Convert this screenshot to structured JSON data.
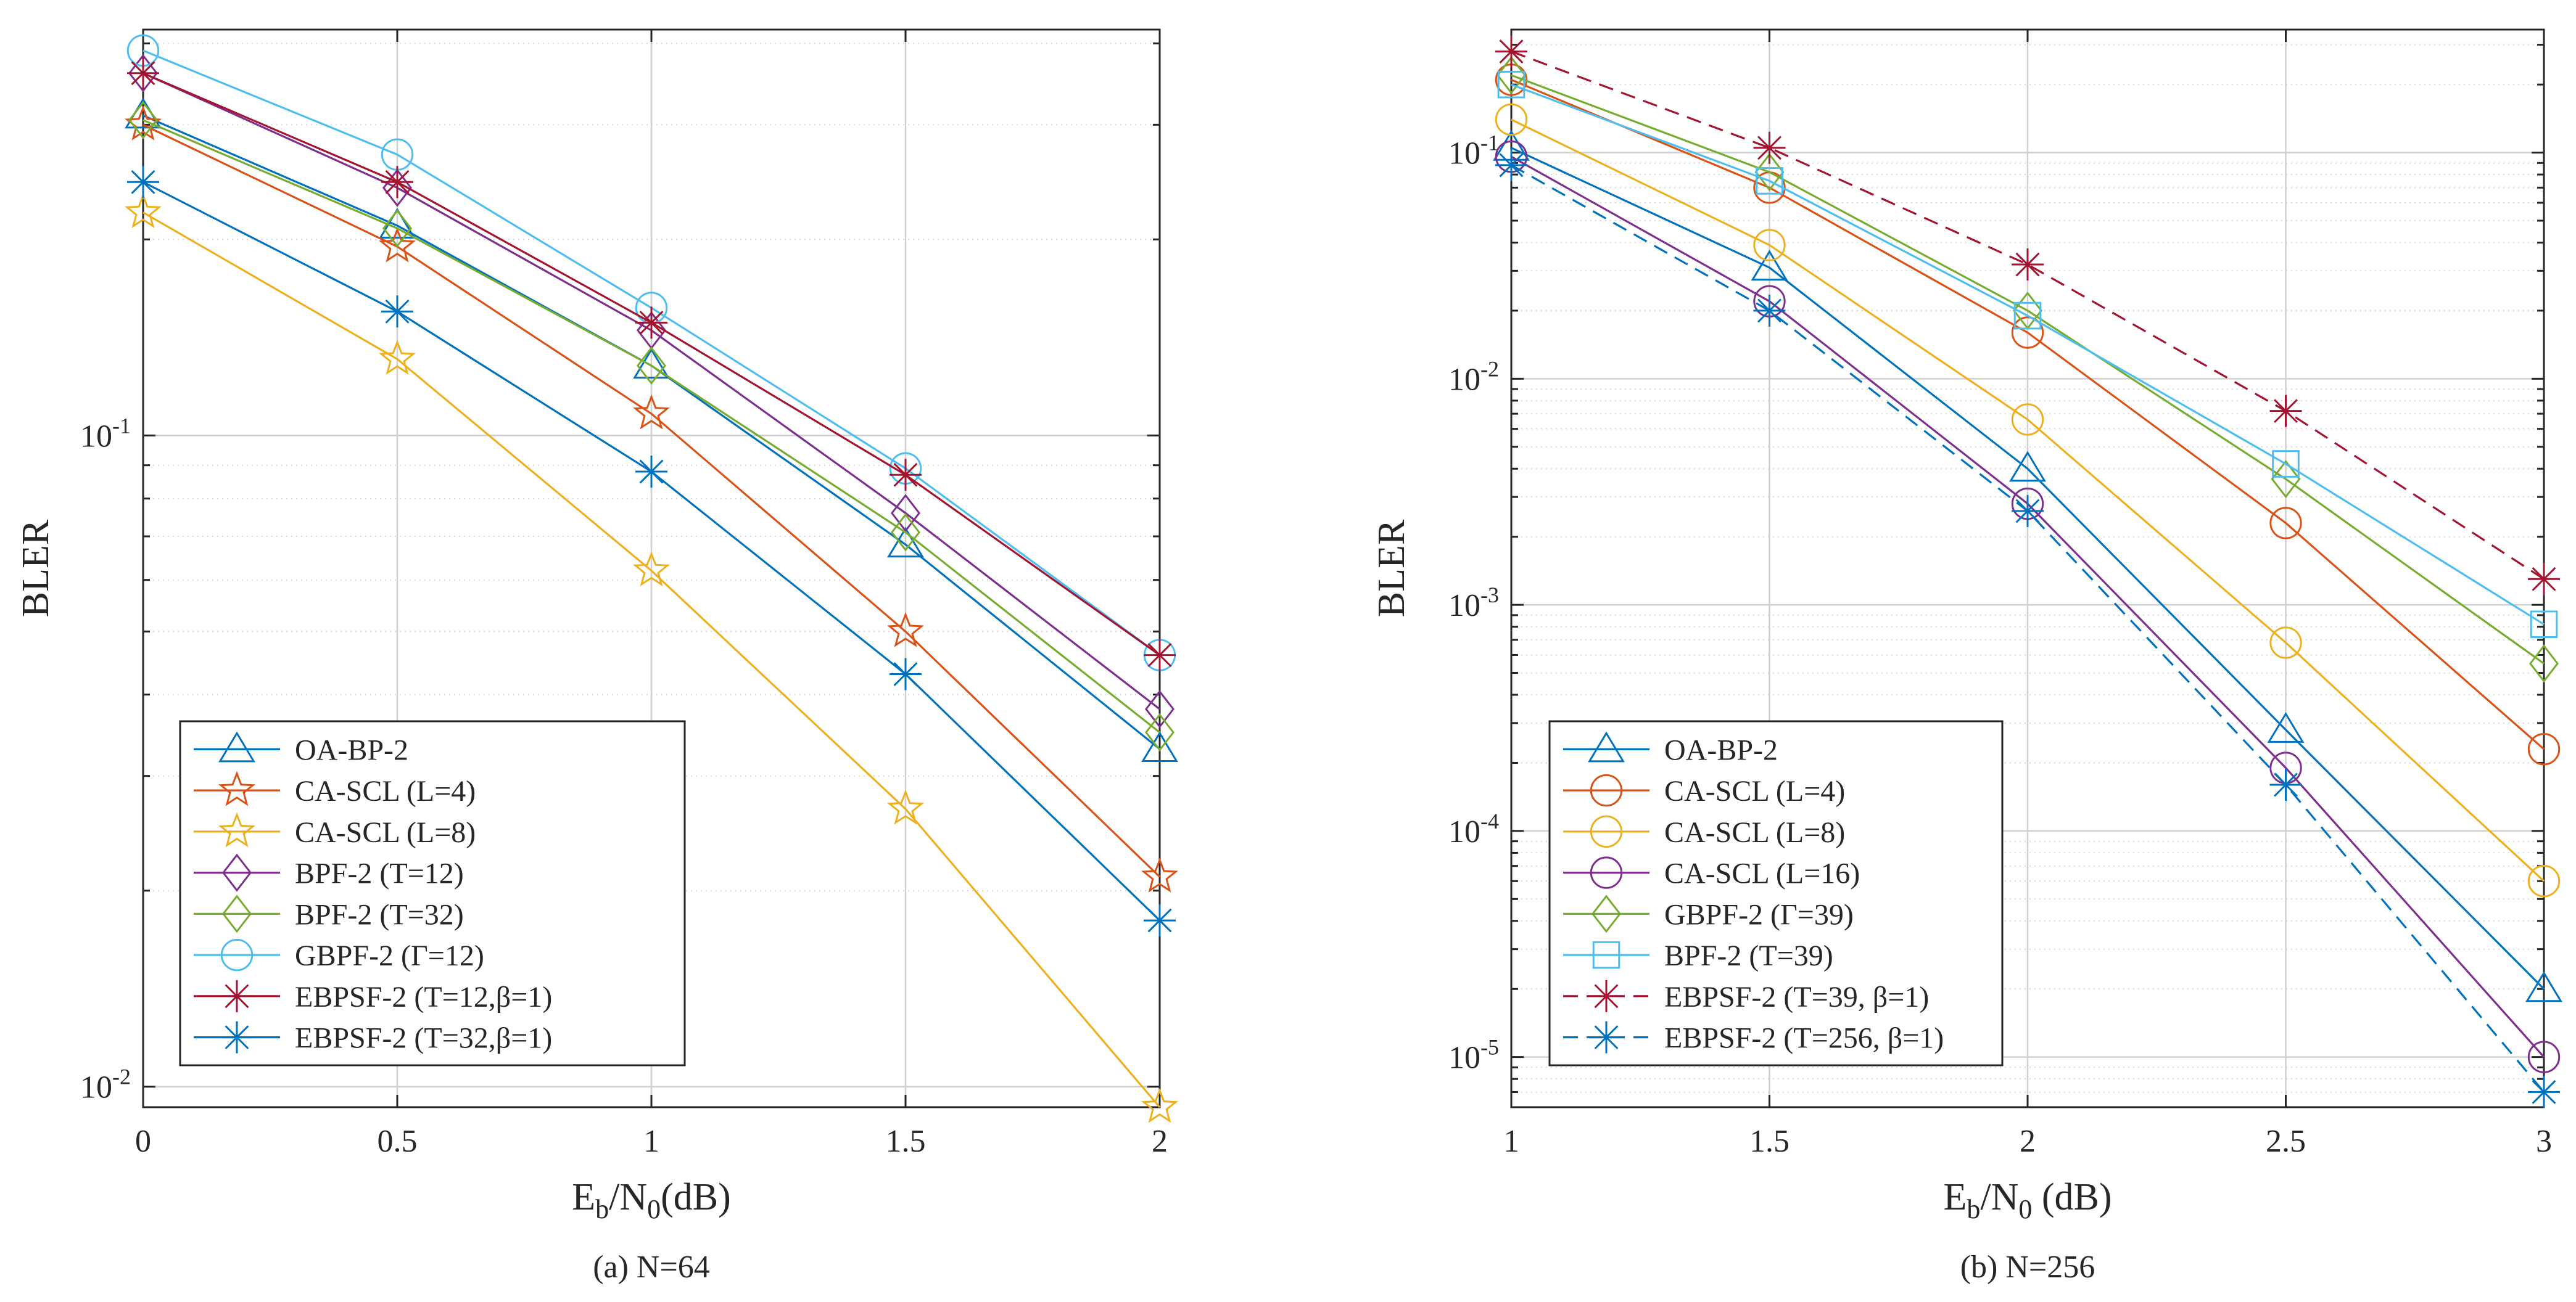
{
  "chart_data": [
    {
      "type": "line",
      "title": "",
      "caption": "(a) N=64",
      "xlabel": {
        "main": "E",
        "sub1": "b",
        "mid": "/N",
        "sub2": "0",
        "tail": "(dB)"
      },
      "ylabel": "BLER",
      "xscale": "linear",
      "yscale": "log",
      "xlim": [
        0,
        2
      ],
      "ylim": [
        0.0093,
        0.42
      ],
      "xticks": [
        0,
        0.5,
        1,
        1.5,
        2
      ],
      "xtick_labels": [
        "0",
        "0.5",
        "1",
        "1.5",
        "2"
      ],
      "yticks": [
        0.01,
        0.1
      ],
      "ytick_labels": [
        {
          "base": "10",
          "exp": "-2"
        },
        {
          "base": "10",
          "exp": "-1"
        }
      ],
      "grid": true,
      "legend_position": "bottom-left",
      "series": [
        {
          "name": "OA-BP-2",
          "color": "#0072BD",
          "marker": "triangle",
          "dash": "solid",
          "x": [
            0,
            0.5,
            1,
            1.5,
            2
          ],
          "y": [
            0.31,
            0.21,
            0.128,
            0.068,
            0.033
          ]
        },
        {
          "name": "CA-SCL  (L=4)",
          "color": "#D95319",
          "marker": "star5",
          "dash": "solid",
          "x": [
            0,
            0.5,
            1,
            1.5,
            2
          ],
          "y": [
            0.3,
            0.195,
            0.108,
            0.05,
            0.021
          ]
        },
        {
          "name": "CA-SCL  (L=8)",
          "color": "#EDB120",
          "marker": "star5",
          "dash": "solid",
          "x": [
            0,
            0.5,
            1,
            1.5,
            2
          ],
          "y": [
            0.22,
            0.131,
            0.062,
            0.0267,
            0.0093
          ]
        },
        {
          "name": "BPF-2 (T=12)",
          "color": "#7E2F8E",
          "marker": "diamond",
          "dash": "solid",
          "x": [
            0,
            0.5,
            1,
            1.5,
            2
          ],
          "y": [
            0.36,
            0.24,
            0.145,
            0.076,
            0.038
          ]
        },
        {
          "name": "BPF-2 (T=32)",
          "color": "#77AC30",
          "marker": "diamond",
          "dash": "solid",
          "x": [
            0,
            0.5,
            1,
            1.5,
            2
          ],
          "y": [
            0.305,
            0.208,
            0.128,
            0.071,
            0.035
          ]
        },
        {
          "name": "GBPF-2 (Γ=12)",
          "color": "#4DBEEE",
          "marker": "circle",
          "dash": "solid",
          "x": [
            0,
            0.5,
            1,
            1.5,
            2
          ],
          "y": [
            0.39,
            0.27,
            0.157,
            0.089,
            0.046
          ]
        },
        {
          "name": "EBPSF-2 (T=12,β=1)",
          "color": "#A2142F",
          "marker": "star6",
          "dash": "solid",
          "x": [
            0,
            0.5,
            1,
            1.5,
            2
          ],
          "y": [
            0.36,
            0.245,
            0.149,
            0.087,
            0.046
          ]
        },
        {
          "name": "EBPSF-2 (T=32,β=1)",
          "color": "#0072BD",
          "marker": "star6",
          "dash": "solid",
          "x": [
            0,
            0.5,
            1,
            1.5,
            2
          ],
          "y": [
            0.245,
            0.155,
            0.088,
            0.043,
            0.018
          ]
        }
      ]
    },
    {
      "type": "line",
      "title": "",
      "caption": "(b) N=256",
      "xlabel": {
        "main": "E",
        "sub1": "b",
        "mid": "/N",
        "sub2": "0",
        "tail": "  (dB)"
      },
      "ylabel": "BLER",
      "xscale": "linear",
      "yscale": "log",
      "xlim": [
        1,
        3
      ],
      "ylim": [
        6e-06,
        0.35
      ],
      "xticks": [
        1,
        1.5,
        2,
        2.5,
        3
      ],
      "xtick_labels": [
        "1",
        "1.5",
        "2",
        "2.5",
        "3"
      ],
      "yticks": [
        1e-05,
        0.0001,
        0.001,
        0.01,
        0.1
      ],
      "ytick_labels": [
        {
          "base": "10",
          "exp": "-5"
        },
        {
          "base": "10",
          "exp": "-4"
        },
        {
          "base": "10",
          "exp": "-3"
        },
        {
          "base": "10",
          "exp": "-2"
        },
        {
          "base": "10",
          "exp": "-1"
        }
      ],
      "grid": true,
      "legend_position": "bottom-left",
      "series": [
        {
          "name": "OA-BP-2",
          "color": "#0072BD",
          "marker": "triangle",
          "dash": "solid",
          "x": [
            1,
            1.5,
            2,
            2.5,
            3
          ],
          "y": [
            0.105,
            0.031,
            0.004,
            0.00028,
            2e-05
          ]
        },
        {
          "name": "CA-SCL (L=4)",
          "color": "#D95319",
          "marker": "circle",
          "dash": "solid",
          "x": [
            1,
            1.5,
            2,
            2.5,
            3
          ],
          "y": [
            0.21,
            0.07,
            0.016,
            0.0023,
            0.00023
          ]
        },
        {
          "name": "CA-SCL (L=8)",
          "color": "#EDB120",
          "marker": "circle",
          "dash": "solid",
          "x": [
            1,
            1.5,
            2,
            2.5,
            3
          ],
          "y": [
            0.14,
            0.039,
            0.0066,
            0.00068,
            6e-05
          ]
        },
        {
          "name": "CA-SCL (L=16)",
          "color": "#7E2F8E",
          "marker": "circle",
          "dash": "solid",
          "x": [
            1,
            1.5,
            2,
            2.5,
            3
          ],
          "y": [
            0.096,
            0.022,
            0.0028,
            0.00019,
            1e-05
          ]
        },
        {
          "name": "GBPF-2 (Γ=39)",
          "color": "#77AC30",
          "marker": "diamond",
          "dash": "solid",
          "x": [
            1,
            1.5,
            2,
            2.5,
            3
          ],
          "y": [
            0.22,
            0.082,
            0.02,
            0.0036,
            0.00055
          ]
        },
        {
          "name": "BPF-2 (T=39)",
          "color": "#4DBEEE",
          "marker": "square",
          "dash": "solid",
          "x": [
            1,
            1.5,
            2,
            2.5,
            3
          ],
          "y": [
            0.2,
            0.075,
            0.019,
            0.0042,
            0.00082
          ]
        },
        {
          "name": "EBPSF-2 (T=39, β=1)",
          "color": "#A2142F",
          "marker": "star6",
          "dash": "dashed",
          "x": [
            1,
            1.5,
            2,
            2.5,
            3
          ],
          "y": [
            0.28,
            0.105,
            0.032,
            0.0072,
            0.0013
          ]
        },
        {
          "name": "EBPSF-2 (T=256, β=1)",
          "color": "#0072BD",
          "marker": "star6",
          "dash": "dashed",
          "x": [
            1,
            1.5,
            2,
            2.5,
            3
          ],
          "y": [
            0.088,
            0.02,
            0.0026,
            0.00016,
            7e-06
          ]
        }
      ]
    }
  ]
}
